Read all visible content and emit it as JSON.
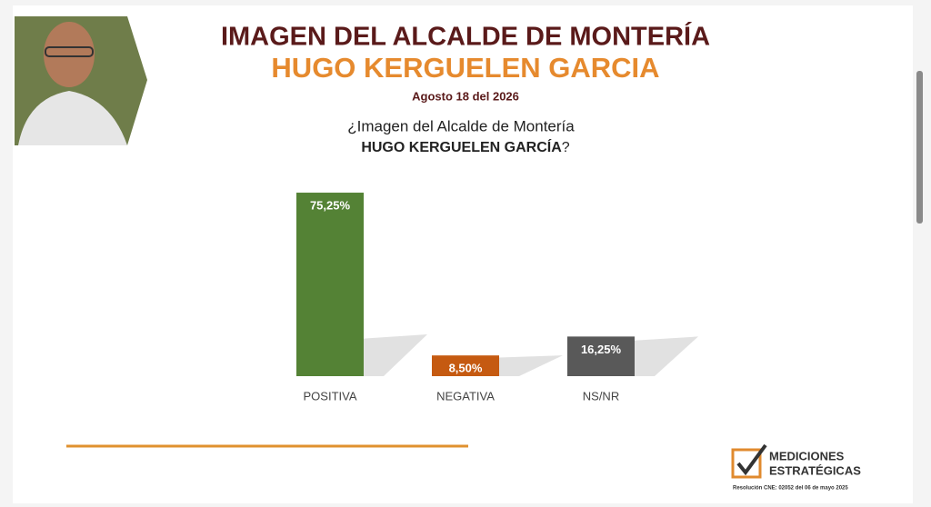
{
  "chart_data": {
    "type": "bar",
    "title": "IMAGEN DEL ALCALDE DE MONTERÍA",
    "subtitle": "HUGO KERGUELEN GARCIA",
    "date": "Agosto 18 del 2026",
    "question": {
      "line1": "¿Imagen del Alcalde de Montería",
      "name": "HUGO KERGUELEN GARCÍA",
      "end": "?"
    },
    "categories": [
      "POSITIVA",
      "NEGATIVA",
      "NS/NR"
    ],
    "values": [
      75.25,
      8.5,
      16.25
    ],
    "value_labels": [
      "75,25%",
      "8,50%",
      "16,25%"
    ],
    "colors": [
      "#548235",
      "#c55a11",
      "#595959"
    ]
  },
  "logo": {
    "line1": "MEDICIONES",
    "line2": "ESTRATÉGICAS",
    "resolution": "Resolución CNE: 02052 del 06 de mayo 2025"
  }
}
